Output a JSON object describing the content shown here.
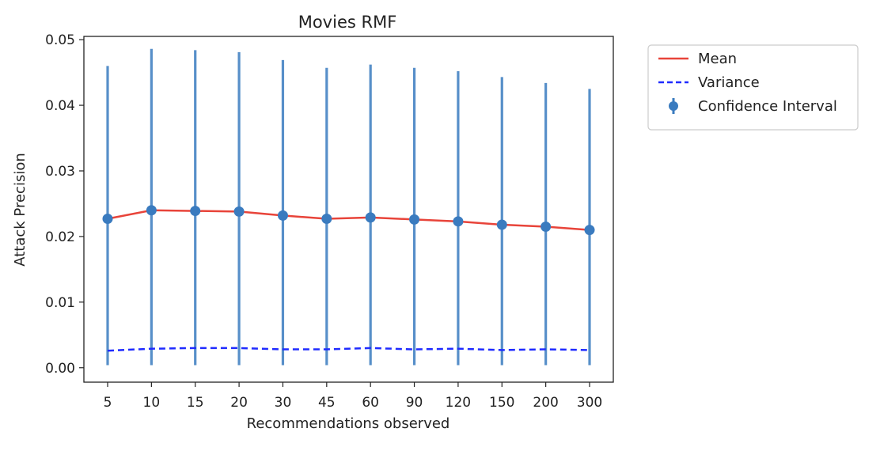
{
  "chart_data": {
    "type": "line",
    "title": "Movies RMF",
    "xlabel": "Recommendations observed",
    "ylabel": "Attack Precision",
    "categories": [
      "5",
      "10",
      "15",
      "20",
      "30",
      "45",
      "60",
      "90",
      "120",
      "150",
      "200",
      "300"
    ],
    "ylim": [
      -0.0022,
      0.0505
    ],
    "yticks": [
      0.0,
      0.01,
      0.02,
      0.03,
      0.04,
      0.05
    ],
    "ytick_labels": [
      "0.00",
      "0.01",
      "0.02",
      "0.03",
      "0.04",
      "0.05"
    ],
    "grid": false,
    "legend_position": "outside-top-right",
    "series": [
      {
        "name": "Mean",
        "style": "solid",
        "color": "#e8443a",
        "values": [
          0.0227,
          0.024,
          0.0239,
          0.0238,
          0.0232,
          0.0227,
          0.0229,
          0.0226,
          0.0223,
          0.0218,
          0.0215,
          0.021
        ]
      },
      {
        "name": "Variance",
        "style": "dashed",
        "color": "#1f2bff",
        "values": [
          0.0026,
          0.0029,
          0.003,
          0.003,
          0.0028,
          0.0028,
          0.003,
          0.0028,
          0.0029,
          0.0027,
          0.0028,
          0.0027
        ]
      },
      {
        "name": "Confidence Interval",
        "style": "errorbar",
        "color": "#3a7bbf",
        "center": [
          0.0227,
          0.024,
          0.0239,
          0.0238,
          0.0232,
          0.0227,
          0.0229,
          0.0226,
          0.0223,
          0.0218,
          0.0215,
          0.021
        ],
        "lower": [
          0.0004,
          0.0004,
          0.0004,
          0.0004,
          0.0004,
          0.0004,
          0.0004,
          0.0004,
          0.0004,
          0.0004,
          0.0004,
          0.0004
        ],
        "upper": [
          0.046,
          0.0486,
          0.0484,
          0.0481,
          0.0469,
          0.0457,
          0.0462,
          0.0457,
          0.0452,
          0.0443,
          0.0434,
          0.0425
        ]
      }
    ]
  }
}
